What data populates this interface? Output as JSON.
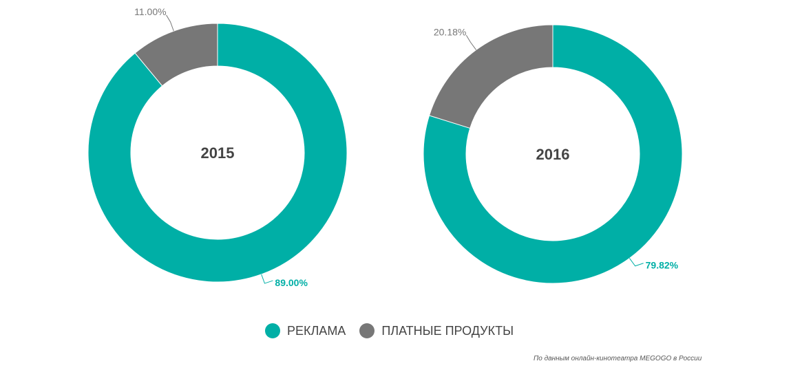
{
  "chart_data": [
    {
      "type": "pie",
      "title": "2015",
      "categories": [
        "РЕКЛАМА",
        "ПЛАТНЫЕ ПРОДУКТЫ"
      ],
      "values": [
        89.0,
        11.0
      ],
      "labels": [
        "89.00%",
        "11.00%"
      ]
    },
    {
      "type": "pie",
      "title": "2016",
      "categories": [
        "РЕКЛАМА",
        "ПЛАТНЫЕ ПРОДУКТЫ"
      ],
      "values": [
        79.82,
        20.18
      ],
      "labels": [
        "79.82%",
        "20.18%"
      ]
    }
  ],
  "legend": [
    {
      "label": "РЕКЛАМА",
      "color": "#00afa6"
    },
    {
      "label": "ПЛАТНЫЕ ПРОДУКТЫ",
      "color": "#777777"
    }
  ],
  "source": "По данным онлайн-кинотеатра MEGOGO в России"
}
